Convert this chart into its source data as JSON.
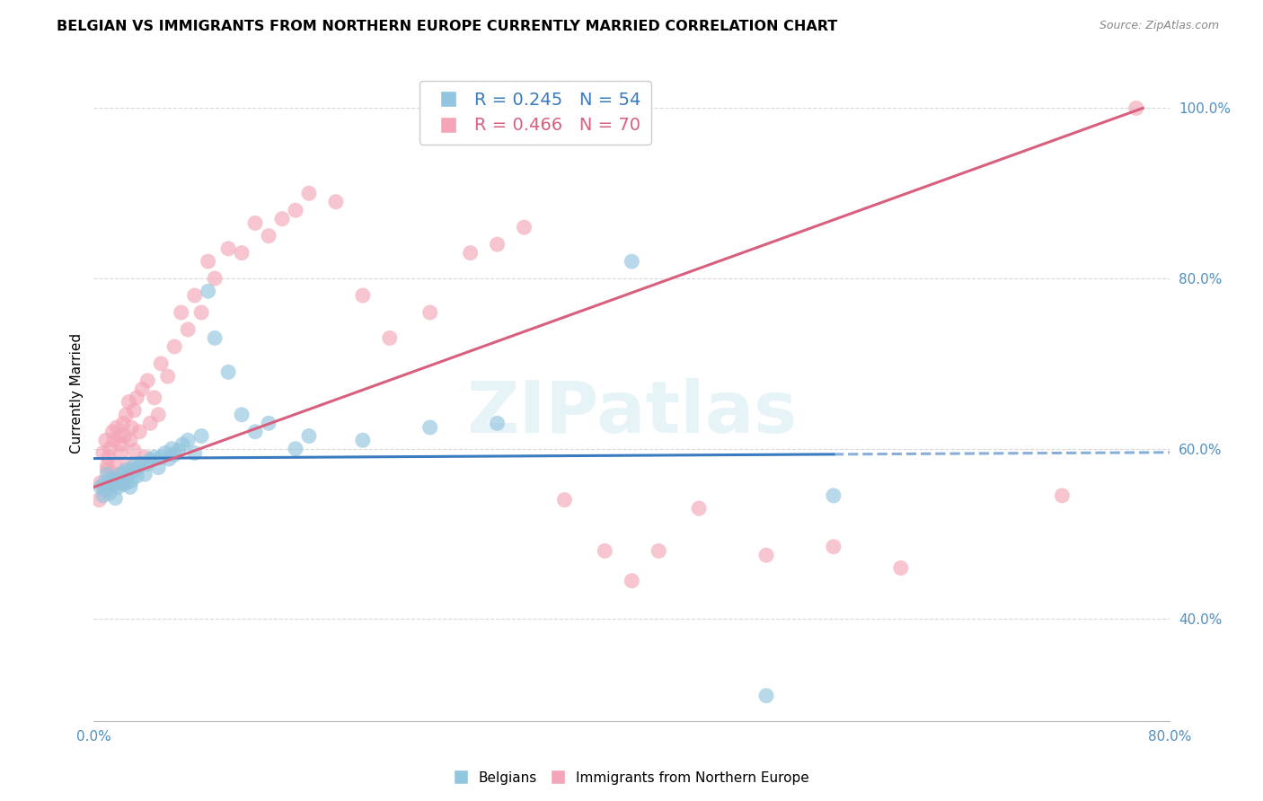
{
  "title": "BELGIAN VS IMMIGRANTS FROM NORTHERN EUROPE CURRENTLY MARRIED CORRELATION CHART",
  "source": "Source: ZipAtlas.com",
  "ylabel": "Currently Married",
  "r_belgian": 0.245,
  "n_belgian": 54,
  "r_immigrant": 0.466,
  "n_immigrant": 70,
  "blue_color": "#92c5de",
  "pink_color": "#f4a6b8",
  "trend_blue": "#3a7abf",
  "trend_pink": "#d95f7f",
  "axis_label_color": "#4f8fc0",
  "watermark": "ZIPatlas",
  "belgians_x": [
    0.005,
    0.007,
    0.008,
    0.01,
    0.01,
    0.012,
    0.013,
    0.015,
    0.015,
    0.016,
    0.018,
    0.02,
    0.02,
    0.022,
    0.022,
    0.024,
    0.025,
    0.025,
    0.027,
    0.028,
    0.03,
    0.03,
    0.032,
    0.033,
    0.035,
    0.038,
    0.04,
    0.042,
    0.045,
    0.048,
    0.05,
    0.053,
    0.056,
    0.058,
    0.06,
    0.063,
    0.066,
    0.07,
    0.075,
    0.08,
    0.085,
    0.09,
    0.1,
    0.11,
    0.12,
    0.13,
    0.15,
    0.16,
    0.2,
    0.25,
    0.3,
    0.5,
    0.55,
    0.4
  ],
  "belgians_y": [
    0.555,
    0.545,
    0.56,
    0.552,
    0.57,
    0.548,
    0.565,
    0.558,
    0.562,
    0.542,
    0.555,
    0.563,
    0.57,
    0.558,
    0.572,
    0.56,
    0.568,
    0.575,
    0.555,
    0.562,
    0.575,
    0.58,
    0.568,
    0.578,
    0.583,
    0.57,
    0.582,
    0.587,
    0.59,
    0.578,
    0.59,
    0.595,
    0.588,
    0.6,
    0.593,
    0.598,
    0.605,
    0.61,
    0.595,
    0.615,
    0.785,
    0.73,
    0.69,
    0.64,
    0.62,
    0.63,
    0.6,
    0.615,
    0.61,
    0.625,
    0.63,
    0.31,
    0.545,
    0.82
  ],
  "immigrants_x": [
    0.004,
    0.005,
    0.007,
    0.008,
    0.009,
    0.01,
    0.01,
    0.011,
    0.012,
    0.013,
    0.014,
    0.015,
    0.015,
    0.016,
    0.017,
    0.018,
    0.019,
    0.02,
    0.02,
    0.021,
    0.022,
    0.023,
    0.024,
    0.025,
    0.026,
    0.027,
    0.028,
    0.03,
    0.03,
    0.032,
    0.034,
    0.036,
    0.038,
    0.04,
    0.042,
    0.045,
    0.048,
    0.05,
    0.055,
    0.06,
    0.065,
    0.07,
    0.075,
    0.08,
    0.085,
    0.09,
    0.1,
    0.11,
    0.12,
    0.13,
    0.14,
    0.15,
    0.16,
    0.18,
    0.2,
    0.22,
    0.25,
    0.28,
    0.3,
    0.32,
    0.35,
    0.38,
    0.4,
    0.42,
    0.45,
    0.5,
    0.55,
    0.6,
    0.72,
    0.775
  ],
  "immigrants_y": [
    0.54,
    0.56,
    0.595,
    0.552,
    0.61,
    0.575,
    0.58,
    0.59,
    0.6,
    0.558,
    0.62,
    0.565,
    0.61,
    0.58,
    0.625,
    0.57,
    0.615,
    0.595,
    0.605,
    0.56,
    0.63,
    0.615,
    0.64,
    0.58,
    0.655,
    0.61,
    0.625,
    0.598,
    0.645,
    0.66,
    0.62,
    0.67,
    0.59,
    0.68,
    0.63,
    0.66,
    0.64,
    0.7,
    0.685,
    0.72,
    0.76,
    0.74,
    0.78,
    0.76,
    0.82,
    0.8,
    0.835,
    0.83,
    0.865,
    0.85,
    0.87,
    0.88,
    0.9,
    0.89,
    0.78,
    0.73,
    0.76,
    0.83,
    0.84,
    0.86,
    0.54,
    0.48,
    0.445,
    0.48,
    0.53,
    0.475,
    0.485,
    0.46,
    0.545,
    1.0
  ],
  "xlim": [
    0.0,
    0.8
  ],
  "ylim": [
    0.28,
    1.05
  ],
  "yticks": [
    0.4,
    0.6,
    0.8,
    1.0
  ],
  "ytick_labels": [
    "40.0%",
    "60.0%",
    "80.0%",
    "100.0%"
  ],
  "xticks": [
    0.0,
    0.1,
    0.2,
    0.3,
    0.4,
    0.5,
    0.6,
    0.7,
    0.8
  ],
  "xtick_labels": [
    "0.0%",
    "",
    "",
    "",
    "",
    "",
    "",
    "",
    "80.0%"
  ],
  "grid_color": "#d8d8d8",
  "background_color": "#ffffff",
  "title_fontsize": 11.5,
  "axis_fontsize": 11
}
